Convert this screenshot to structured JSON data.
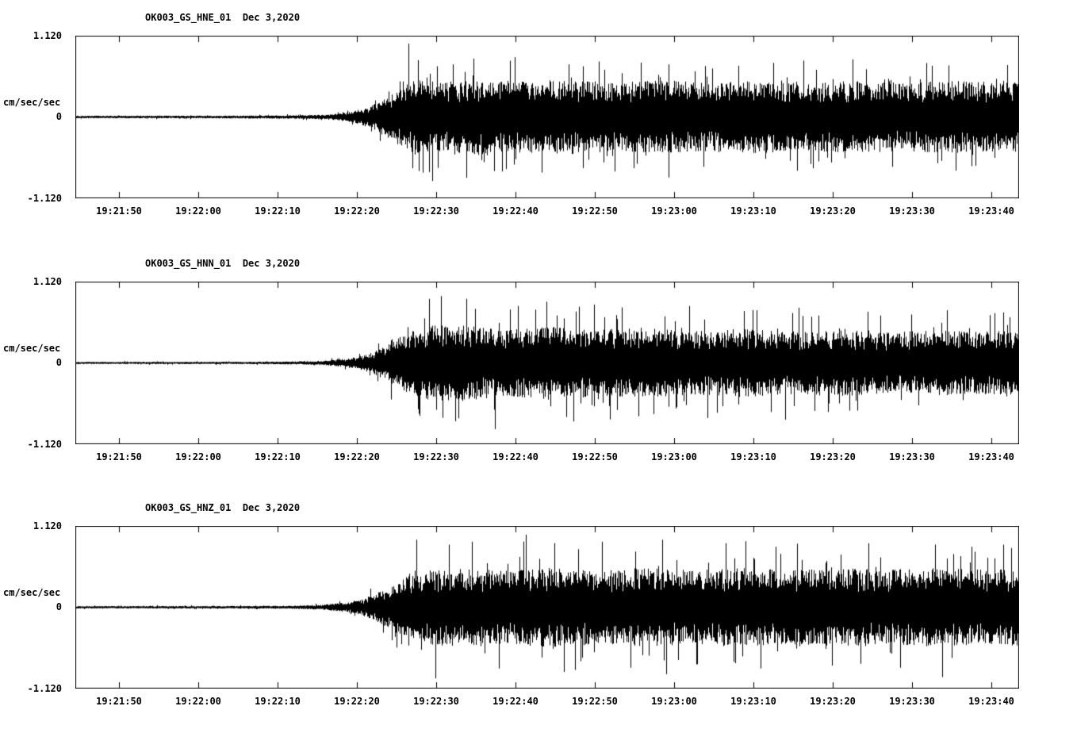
{
  "figure": {
    "background": "#ffffff",
    "trace_color": "#000000",
    "description": "Three-component strong-motion accelerogram record, station OK003, Dec 3 2020"
  },
  "chart_data": [
    {
      "type": "line",
      "title": "OK003_GS_HNE_01  Dec 3,2020",
      "station": "OK003_GS_HNE_01",
      "date": "Dec 3,2020",
      "ylabel": "cm/sec/sec",
      "ylim": [
        -1.12,
        1.12
      ],
      "ytick_labels": [
        "1.120",
        "0",
        "-1.120"
      ],
      "xtick_labels": [
        "19:21:50",
        "19:22:00",
        "19:22:10",
        "19:22:20",
        "19:22:30",
        "19:22:40",
        "19:22:50",
        "19:23:00",
        "19:23:10",
        "19:23:20",
        "19:23:30",
        "19:23:40"
      ],
      "x_tick_interval_sec": 10,
      "x_first_tick_offset_sec": 5.5,
      "duration_sec": 119,
      "grid": false,
      "legend": false,
      "noise_seed": 11,
      "envelope": [
        [
          0,
          0.018
        ],
        [
          14,
          0.018
        ],
        [
          24,
          0.022
        ],
        [
          30,
          0.028
        ],
        [
          33,
          0.045
        ],
        [
          35,
          0.08
        ],
        [
          37,
          0.15
        ],
        [
          39,
          0.27
        ],
        [
          41,
          0.42
        ],
        [
          43,
          0.54
        ],
        [
          46,
          0.48
        ],
        [
          50,
          0.54
        ],
        [
          56,
          0.5
        ],
        [
          62,
          0.53
        ],
        [
          68,
          0.48
        ],
        [
          74,
          0.52
        ],
        [
          80,
          0.48
        ],
        [
          86,
          0.51
        ],
        [
          92,
          0.47
        ],
        [
          98,
          0.51
        ],
        [
          104,
          0.48
        ],
        [
          110,
          0.51
        ],
        [
          119,
          0.49
        ]
      ],
      "spikes": [
        [
          42,
          1.03
        ],
        [
          42.5,
          -0.72
        ],
        [
          43.2,
          0.8
        ],
        [
          45.0,
          -0.9
        ],
        [
          47.6,
          0.74
        ],
        [
          50.2,
          0.82
        ],
        [
          52.8,
          -0.76
        ],
        [
          55.4,
          0.84
        ],
        [
          58.8,
          -0.78
        ],
        [
          62.2,
          0.74
        ],
        [
          66.0,
          0.78
        ],
        [
          70.4,
          -0.72
        ],
        [
          74.8,
          0.74
        ],
        [
          79.2,
          -0.7
        ],
        [
          83.6,
          0.72
        ],
        [
          88.0,
          0.76
        ],
        [
          93.0,
          -0.72
        ],
        [
          98.0,
          0.74
        ],
        [
          103.0,
          -0.7
        ],
        [
          108.0,
          0.72
        ],
        [
          113.0,
          -0.69
        ],
        [
          117.5,
          0.73
        ]
      ]
    },
    {
      "type": "line",
      "title": "OK003_GS_HNN_01  Dec 3,2020",
      "station": "OK003_GS_HNN_01",
      "date": "Dec 3,2020",
      "ylabel": "cm/sec/sec",
      "ylim": [
        -1.12,
        1.12
      ],
      "ytick_labels": [
        "1.120",
        "0",
        "-1.120"
      ],
      "xtick_labels": [
        "19:21:50",
        "19:22:00",
        "19:22:10",
        "19:22:20",
        "19:22:30",
        "19:22:40",
        "19:22:50",
        "19:23:00",
        "19:23:10",
        "19:23:20",
        "19:23:30",
        "19:23:40"
      ],
      "x_tick_interval_sec": 10,
      "x_first_tick_offset_sec": 5.5,
      "duration_sec": 119,
      "grid": false,
      "legend": false,
      "noise_seed": 22,
      "envelope": [
        [
          0,
          0.015
        ],
        [
          18,
          0.016
        ],
        [
          26,
          0.019
        ],
        [
          31,
          0.03
        ],
        [
          34,
          0.055
        ],
        [
          36,
          0.1
        ],
        [
          38,
          0.18
        ],
        [
          40,
          0.3
        ],
        [
          42,
          0.43
        ],
        [
          44,
          0.5
        ],
        [
          46,
          0.56
        ],
        [
          50,
          0.52
        ],
        [
          55,
          0.47
        ],
        [
          60,
          0.52
        ],
        [
          66,
          0.47
        ],
        [
          72,
          0.5
        ],
        [
          78,
          0.45
        ],
        [
          84,
          0.48
        ],
        [
          90,
          0.44
        ],
        [
          96,
          0.47
        ],
        [
          102,
          0.43
        ],
        [
          108,
          0.46
        ],
        [
          114,
          0.44
        ],
        [
          119,
          0.46
        ]
      ],
      "spikes": [
        [
          44.6,
          0.9
        ],
        [
          46.1,
          0.94
        ],
        [
          47.9,
          -0.82
        ],
        [
          50.4,
          0.76
        ],
        [
          52.9,
          -0.93
        ],
        [
          55.8,
          0.8
        ],
        [
          59.4,
          0.86
        ],
        [
          61.9,
          -0.76
        ],
        [
          65.4,
          0.82
        ],
        [
          68.9,
          0.78
        ],
        [
          72.9,
          -0.72
        ],
        [
          77.4,
          0.8
        ],
        [
          80.9,
          -0.7
        ],
        [
          85.9,
          0.74
        ],
        [
          90.4,
          0.7
        ],
        [
          94.9,
          -0.69
        ],
        [
          99.9,
          0.72
        ],
        [
          105.4,
          0.68
        ],
        [
          109.9,
          0.74
        ],
        [
          115.9,
          0.7
        ]
      ]
    },
    {
      "type": "line",
      "title": "OK003_GS_HNZ_01  Dec 3,2020",
      "station": "OK003_GS_HNZ_01",
      "date": "Dec 3,2020",
      "ylabel": "cm/sec/sec",
      "ylim": [
        -1.12,
        1.12
      ],
      "ytick_labels": [
        "1.120",
        "0",
        "-1.120"
      ],
      "xtick_labels": [
        "19:21:50",
        "19:22:00",
        "19:22:10",
        "19:22:20",
        "19:22:30",
        "19:22:40",
        "19:22:50",
        "19:23:00",
        "19:23:10",
        "19:23:20",
        "19:23:30",
        "19:23:40"
      ],
      "x_tick_interval_sec": 10,
      "x_first_tick_offset_sec": 5.5,
      "duration_sec": 119,
      "grid": false,
      "legend": false,
      "noise_seed": 33,
      "envelope": [
        [
          0,
          0.016
        ],
        [
          18,
          0.018
        ],
        [
          27,
          0.021
        ],
        [
          31,
          0.035
        ],
        [
          34,
          0.065
        ],
        [
          36,
          0.11
        ],
        [
          38,
          0.2
        ],
        [
          40,
          0.33
        ],
        [
          42,
          0.44
        ],
        [
          44,
          0.52
        ],
        [
          48,
          0.56
        ],
        [
          54,
          0.52
        ],
        [
          60,
          0.56
        ],
        [
          66,
          0.52
        ],
        [
          72,
          0.55
        ],
        [
          78,
          0.52
        ],
        [
          84,
          0.55
        ],
        [
          90,
          0.52
        ],
        [
          96,
          0.55
        ],
        [
          102,
          0.53
        ],
        [
          108,
          0.55
        ],
        [
          114,
          0.53
        ],
        [
          119,
          0.54
        ]
      ],
      "spikes": [
        [
          43,
          0.95
        ],
        [
          45.4,
          -1.0
        ],
        [
          47.1,
          0.88
        ],
        [
          50,
          0.92
        ],
        [
          53.4,
          -0.86
        ],
        [
          56.8,
          1.02
        ],
        [
          60.4,
          0.9
        ],
        [
          63,
          -0.88
        ],
        [
          66.4,
          0.92
        ],
        [
          70,
          -0.85
        ],
        [
          74,
          0.95
        ],
        [
          78.4,
          -0.8
        ],
        [
          82,
          0.9
        ],
        [
          86.4,
          -0.86
        ],
        [
          91,
          0.88
        ],
        [
          95.4,
          -0.82
        ],
        [
          100,
          0.9
        ],
        [
          104,
          -0.85
        ],
        [
          108.4,
          0.88
        ],
        [
          109.3,
          -0.98
        ],
        [
          113,
          0.85
        ],
        [
          117,
          0.88
        ]
      ]
    }
  ]
}
